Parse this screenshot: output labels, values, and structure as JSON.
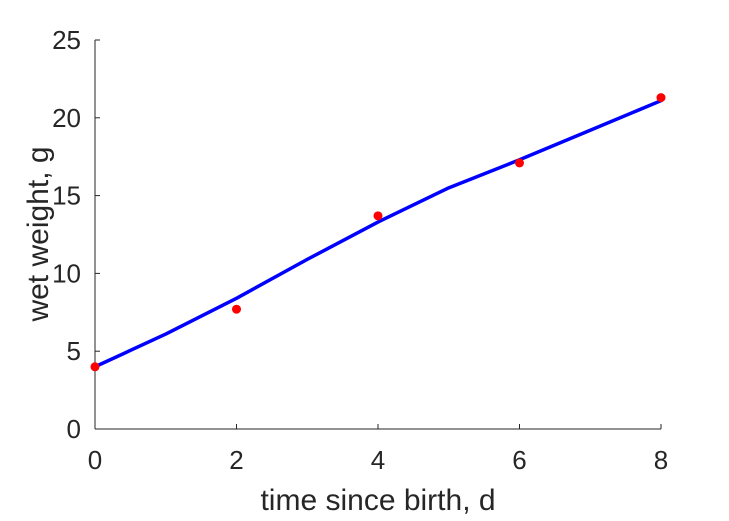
{
  "chart_data": {
    "type": "scatter",
    "xlabel": "time since birth, d",
    "ylabel": "wet weight, g",
    "xlim": [
      0,
      8
    ],
    "ylim": [
      0,
      25
    ],
    "xticks": [
      0,
      2,
      4,
      6,
      8
    ],
    "yticks": [
      0,
      5,
      10,
      15,
      20,
      25
    ],
    "grid": false,
    "series": [
      {
        "kind": "scatter",
        "color": "#ff0000",
        "x": [
          0,
          2,
          4,
          6,
          8
        ],
        "y": [
          4.0,
          7.7,
          13.7,
          17.1,
          21.3
        ]
      },
      {
        "kind": "line",
        "color": "#0000ff",
        "x": [
          0,
          1,
          2,
          3,
          4,
          5,
          6,
          7,
          8
        ],
        "y": [
          4.0,
          6.1,
          8.4,
          10.9,
          13.3,
          15.5,
          17.3,
          19.2,
          21.1
        ]
      }
    ]
  }
}
